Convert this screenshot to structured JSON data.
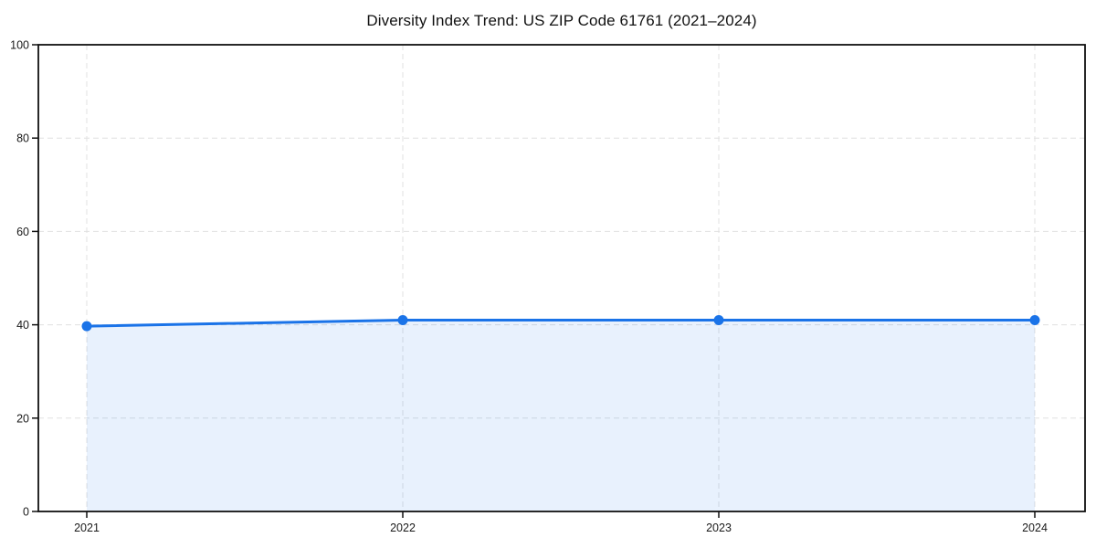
{
  "chart_data": {
    "type": "area",
    "title": "Diversity Index Trend: US ZIP Code 61761 (2021–2024)",
    "series_name": "Diversity Index",
    "x": [
      "2021",
      "2022",
      "2023",
      "2024"
    ],
    "values": [
      39.7,
      41,
      41,
      41
    ],
    "xlabel": "",
    "ylabel": "",
    "ylim": [
      0,
      100
    ],
    "yticks": [
      0,
      20,
      40,
      60,
      80,
      100
    ],
    "grid": "dashed",
    "legend": "none",
    "colors": {
      "line": "#1a73e8",
      "marker": "#1a73e8",
      "fill": "#1a73e8",
      "fill_opacity": 0.1,
      "gridline": "#e0e0e0",
      "spine": "#111111",
      "tick_label": "#1a1a1a",
      "background": "#ffffff"
    }
  }
}
